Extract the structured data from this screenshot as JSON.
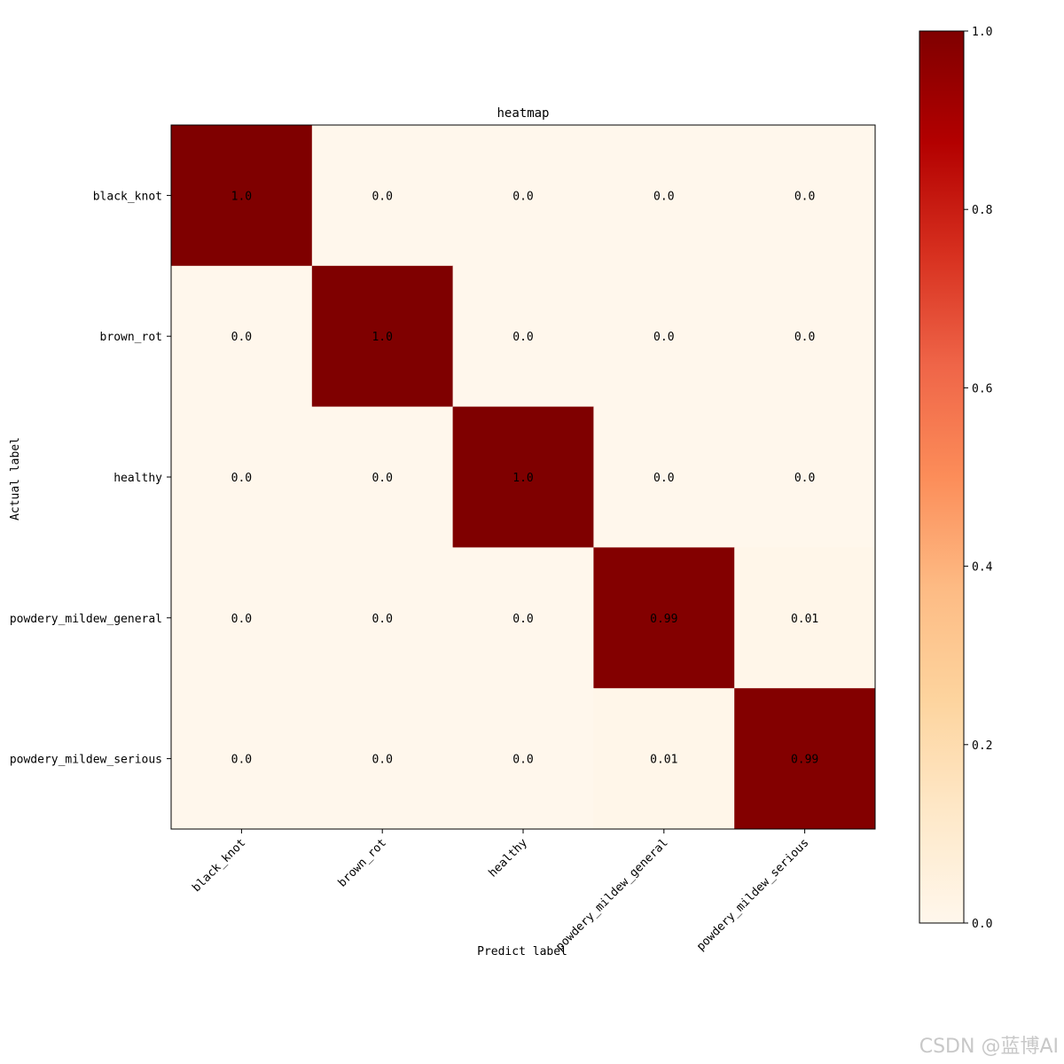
{
  "chart_data": {
    "type": "heatmap",
    "title": "heatmap",
    "xlabel": "Predict label",
    "ylabel": "Actual label",
    "x_categories": [
      "black_knot",
      "brown_rot",
      "healthy",
      "powdery_mildew_general",
      "powdery_mildew_serious"
    ],
    "y_categories": [
      "black_knot",
      "brown_rot",
      "healthy",
      "powdery_mildew_general",
      "powdery_mildew_serious"
    ],
    "values": [
      [
        1.0,
        0.0,
        0.0,
        0.0,
        0.0
      ],
      [
        0.0,
        1.0,
        0.0,
        0.0,
        0.0
      ],
      [
        0.0,
        0.0,
        1.0,
        0.0,
        0.0
      ],
      [
        0.0,
        0.0,
        0.0,
        0.99,
        0.01
      ],
      [
        0.0,
        0.0,
        0.0,
        0.01,
        0.99
      ]
    ],
    "cell_labels": [
      [
        "1.0",
        "0.0",
        "0.0",
        "0.0",
        "0.0"
      ],
      [
        "0.0",
        "1.0",
        "0.0",
        "0.0",
        "0.0"
      ],
      [
        "0.0",
        "0.0",
        "1.0",
        "0.0",
        "0.0"
      ],
      [
        "0.0",
        "0.0",
        "0.0",
        "0.99",
        "0.01"
      ],
      [
        "0.0",
        "0.0",
        "0.0",
        "0.01",
        "0.99"
      ]
    ],
    "colorbar": {
      "range": [
        0.0,
        1.0
      ],
      "ticks": [
        "0.0",
        "0.2",
        "0.4",
        "0.6",
        "0.8",
        "1.0"
      ],
      "colormap": "OrRd",
      "colors": [
        "#fff7ec",
        "#fee8c8",
        "#fdd49e",
        "#fdbb84",
        "#fc8d59",
        "#ef6548",
        "#d7301f",
        "#b30000",
        "#7f0000"
      ]
    }
  },
  "watermark": "CSDN @蓝博AI"
}
